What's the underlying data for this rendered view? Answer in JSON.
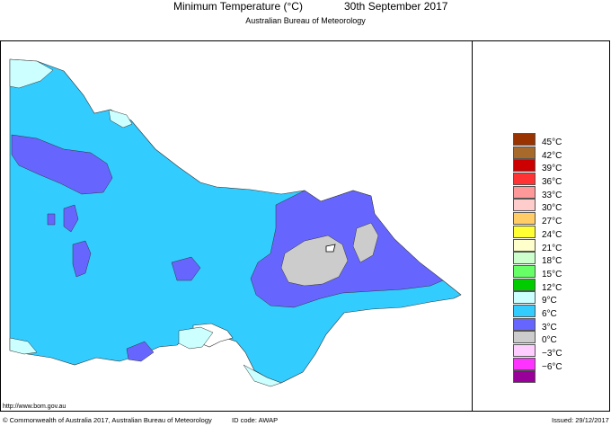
{
  "title": {
    "main": "Minimum Temperature (°C)",
    "date": "30th September 2017"
  },
  "subtitle": "Australian Bureau of Meteorology",
  "legend": {
    "items": [
      {
        "label": "45°C",
        "color": "#993300"
      },
      {
        "label": "42°C",
        "color": "#a86a2a"
      },
      {
        "label": "39°C",
        "color": "#cc0000"
      },
      {
        "label": "36°C",
        "color": "#ff3333"
      },
      {
        "label": "33°C",
        "color": "#ff9999"
      },
      {
        "label": "30°C",
        "color": "#ffcccc"
      },
      {
        "label": "27°C",
        "color": "#ffcc66"
      },
      {
        "label": "24°C",
        "color": "#ffff33"
      },
      {
        "label": "21°C",
        "color": "#ffffcc"
      },
      {
        "label": "18°C",
        "color": "#ccffcc"
      },
      {
        "label": "15°C",
        "color": "#66ff66"
      },
      {
        "label": "12°C",
        "color": "#00cc00"
      },
      {
        "label": "9°C",
        "color": "#ccffff"
      },
      {
        "label": "6°C",
        "color": "#33ccff"
      },
      {
        "label": "3°C",
        "color": "#6666ff"
      },
      {
        "label": "0°C",
        "color": "#cccccc"
      },
      {
        "label": "−3°C",
        "color": "#ffccff"
      },
      {
        "label": "−6°C",
        "color": "#ff33ff"
      },
      {
        "label": "",
        "color": "#990099"
      }
    ]
  },
  "url": "http://www.bom.gov.au",
  "footer": {
    "copyright": "© Commonwealth of Australia 2017, Australian Bureau of Meteorology",
    "id_code": "ID code: AWAP",
    "issued": "Issued: 29/12/2017"
  }
}
